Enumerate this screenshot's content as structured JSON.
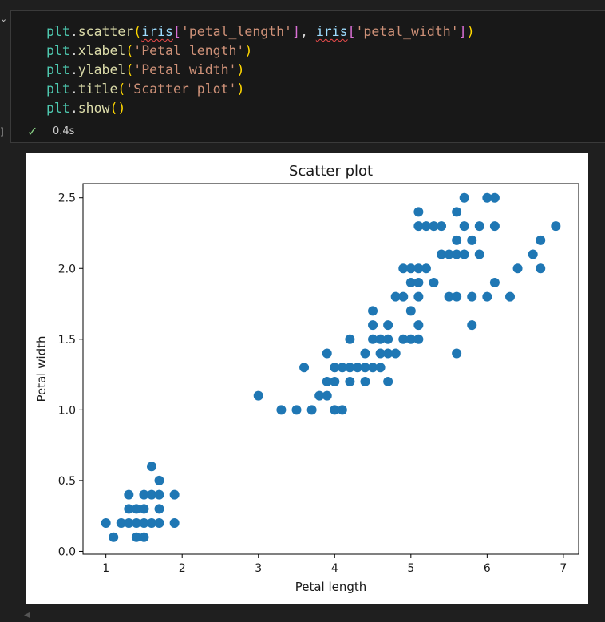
{
  "cell": {
    "collapse_icon": "chevron-down-icon",
    "exec_count_label": "]",
    "code_lines": [
      [
        {
          "t": "plt",
          "c": "var"
        },
        {
          "t": ".",
          "c": "plain"
        },
        {
          "t": "scatter",
          "c": "fn"
        },
        {
          "t": "(",
          "c": "p1"
        },
        {
          "t": "iris",
          "c": "id",
          "squig": true
        },
        {
          "t": "[",
          "c": "p2"
        },
        {
          "t": "'petal_length'",
          "c": "str"
        },
        {
          "t": "]",
          "c": "p2"
        },
        {
          "t": ", ",
          "c": "plain"
        },
        {
          "t": "iris",
          "c": "id",
          "squig": true
        },
        {
          "t": "[",
          "c": "p2"
        },
        {
          "t": "'petal_width'",
          "c": "str"
        },
        {
          "t": "]",
          "c": "p2"
        },
        {
          "t": ")",
          "c": "p1"
        }
      ],
      [
        {
          "t": "plt",
          "c": "var"
        },
        {
          "t": ".",
          "c": "plain"
        },
        {
          "t": "xlabel",
          "c": "fn"
        },
        {
          "t": "(",
          "c": "p1"
        },
        {
          "t": "'Petal length'",
          "c": "str"
        },
        {
          "t": ")",
          "c": "p1"
        }
      ],
      [
        {
          "t": "plt",
          "c": "var"
        },
        {
          "t": ".",
          "c": "plain"
        },
        {
          "t": "ylabel",
          "c": "fn"
        },
        {
          "t": "(",
          "c": "p1"
        },
        {
          "t": "'Petal width'",
          "c": "str"
        },
        {
          "t": ")",
          "c": "p1"
        }
      ],
      [
        {
          "t": "plt",
          "c": "var"
        },
        {
          "t": ".",
          "c": "plain"
        },
        {
          "t": "title",
          "c": "fn"
        },
        {
          "t": "(",
          "c": "p1"
        },
        {
          "t": "'Scatter plot'",
          "c": "str"
        },
        {
          "t": ")",
          "c": "p1"
        }
      ],
      [
        {
          "t": "plt",
          "c": "var"
        },
        {
          "t": ".",
          "c": "plain"
        },
        {
          "t": "show",
          "c": "fn"
        },
        {
          "t": "()",
          "c": "p1"
        }
      ]
    ],
    "status_icon": "check-icon",
    "exec_time": "0.4s"
  },
  "colors": {
    "marker": "#1f77b4",
    "background": "#1f1f1f",
    "cell_background": "#181818"
  },
  "chart_data": {
    "type": "scatter",
    "title": "Scatter plot",
    "xlabel": "Petal length",
    "ylabel": "Petal width",
    "xlim": [
      0.7,
      7.2
    ],
    "ylim": [
      -0.02,
      2.6
    ],
    "xticks": [
      1,
      2,
      3,
      4,
      5,
      6,
      7
    ],
    "yticks": [
      0.0,
      0.5,
      1.0,
      1.5,
      2.0,
      2.5
    ],
    "ytick_labels": [
      "0.0",
      "0.5",
      "1.0",
      "1.5",
      "2.0",
      "2.5"
    ],
    "grid": false,
    "points": [
      [
        1.0,
        0.2
      ],
      [
        1.1,
        0.1
      ],
      [
        1.2,
        0.2
      ],
      [
        1.3,
        0.2
      ],
      [
        1.3,
        0.3
      ],
      [
        1.3,
        0.4
      ],
      [
        1.4,
        0.1
      ],
      [
        1.4,
        0.2
      ],
      [
        1.4,
        0.3
      ],
      [
        1.5,
        0.1
      ],
      [
        1.5,
        0.2
      ],
      [
        1.5,
        0.3
      ],
      [
        1.5,
        0.4
      ],
      [
        1.6,
        0.2
      ],
      [
        1.6,
        0.4
      ],
      [
        1.6,
        0.6
      ],
      [
        1.7,
        0.2
      ],
      [
        1.7,
        0.3
      ],
      [
        1.7,
        0.4
      ],
      [
        1.7,
        0.5
      ],
      [
        1.9,
        0.2
      ],
      [
        1.9,
        0.4
      ],
      [
        3.0,
        1.1
      ],
      [
        3.3,
        1.0
      ],
      [
        3.5,
        1.0
      ],
      [
        3.6,
        1.3
      ],
      [
        3.7,
        1.0
      ],
      [
        3.8,
        1.1
      ],
      [
        3.9,
        1.1
      ],
      [
        3.9,
        1.2
      ],
      [
        3.9,
        1.4
      ],
      [
        4.0,
        1.0
      ],
      [
        4.0,
        1.2
      ],
      [
        4.0,
        1.3
      ],
      [
        4.1,
        1.0
      ],
      [
        4.1,
        1.3
      ],
      [
        4.2,
        1.2
      ],
      [
        4.2,
        1.3
      ],
      [
        4.2,
        1.5
      ],
      [
        4.3,
        1.3
      ],
      [
        4.4,
        1.2
      ],
      [
        4.4,
        1.3
      ],
      [
        4.4,
        1.4
      ],
      [
        4.5,
        1.3
      ],
      [
        4.5,
        1.5
      ],
      [
        4.5,
        1.6
      ],
      [
        4.5,
        1.7
      ],
      [
        4.6,
        1.3
      ],
      [
        4.6,
        1.4
      ],
      [
        4.6,
        1.5
      ],
      [
        4.7,
        1.2
      ],
      [
        4.7,
        1.4
      ],
      [
        4.7,
        1.5
      ],
      [
        4.7,
        1.6
      ],
      [
        4.8,
        1.4
      ],
      [
        4.8,
        1.8
      ],
      [
        4.9,
        1.5
      ],
      [
        4.9,
        1.8
      ],
      [
        4.9,
        2.0
      ],
      [
        5.0,
        1.5
      ],
      [
        5.0,
        1.7
      ],
      [
        5.0,
        1.9
      ],
      [
        5.0,
        2.0
      ],
      [
        5.1,
        1.5
      ],
      [
        5.1,
        1.6
      ],
      [
        5.1,
        1.8
      ],
      [
        5.1,
        1.9
      ],
      [
        5.1,
        2.0
      ],
      [
        5.1,
        2.3
      ],
      [
        5.1,
        2.4
      ],
      [
        5.2,
        2.0
      ],
      [
        5.2,
        2.3
      ],
      [
        5.3,
        1.9
      ],
      [
        5.3,
        2.3
      ],
      [
        5.4,
        2.1
      ],
      [
        5.4,
        2.3
      ],
      [
        5.5,
        1.8
      ],
      [
        5.5,
        2.1
      ],
      [
        5.6,
        1.4
      ],
      [
        5.6,
        1.8
      ],
      [
        5.6,
        2.1
      ],
      [
        5.6,
        2.2
      ],
      [
        5.6,
        2.4
      ],
      [
        5.7,
        2.1
      ],
      [
        5.7,
        2.3
      ],
      [
        5.7,
        2.5
      ],
      [
        5.8,
        1.6
      ],
      [
        5.8,
        1.8
      ],
      [
        5.8,
        2.2
      ],
      [
        5.9,
        2.1
      ],
      [
        5.9,
        2.3
      ],
      [
        6.0,
        1.8
      ],
      [
        6.0,
        2.5
      ],
      [
        6.1,
        1.9
      ],
      [
        6.1,
        2.3
      ],
      [
        6.1,
        2.5
      ],
      [
        6.3,
        1.8
      ],
      [
        6.4,
        2.0
      ],
      [
        6.6,
        2.1
      ],
      [
        6.7,
        2.0
      ],
      [
        6.7,
        2.2
      ],
      [
        6.9,
        2.3
      ]
    ]
  }
}
